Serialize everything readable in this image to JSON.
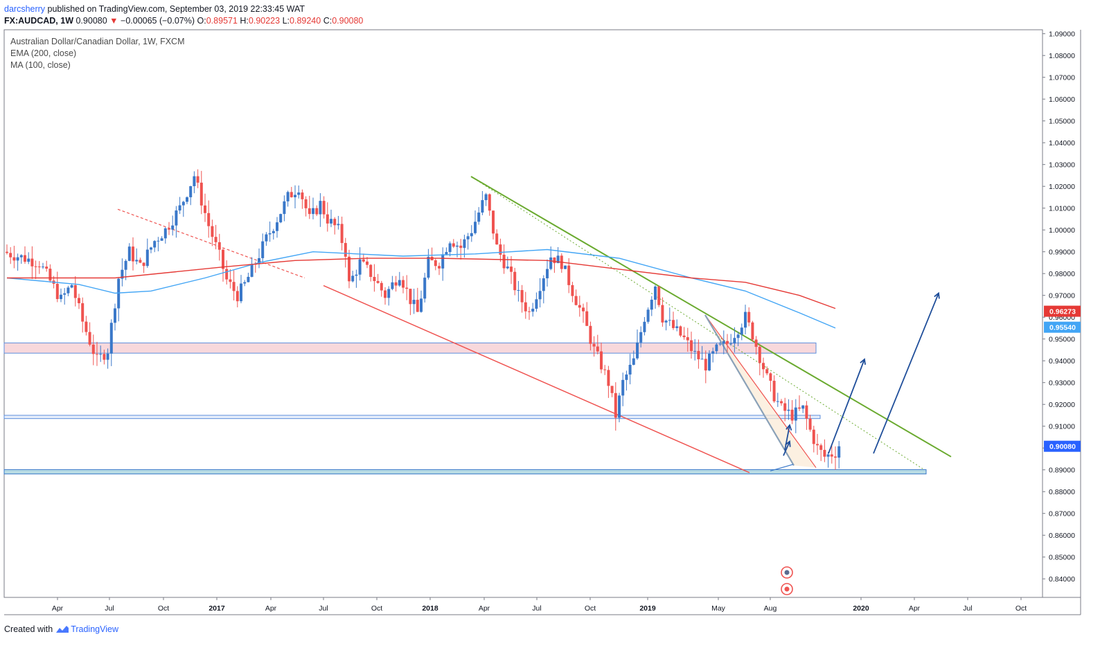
{
  "header": {
    "author": "darcsherry",
    "published": "published on TradingView.com, September 03, 2019 22:33:45 WAT",
    "symbol": "FX:AUDCAD, 1W",
    "last": "0.90080",
    "change_arrow": "▼",
    "change": "−0.00065 (−0.07%)",
    "o_label": "O:",
    "o": "0.89571",
    "h_label": "H:",
    "h": "0.90223",
    "l_label": "L:",
    "l": "0.89240",
    "c_label": "C:",
    "c": "0.90080"
  },
  "legend": {
    "title": "Australian Dollar/Canadian Dollar, 1W, FXCM",
    "ema": "EMA (200, close)",
    "ma": "MA (100, close)"
  },
  "footer": {
    "created": "Created with",
    "brand": "TradingView"
  },
  "colors": {
    "up": "#3a78c9",
    "down": "#ef5350",
    "ema": "#e53935",
    "ma": "#42a5f5",
    "trend_green": "#6aaa2f"
  },
  "chart_data": {
    "type": "candlestick",
    "symbol": "FX:AUDCAD",
    "interval": "1W",
    "y_axis_ticks": [
      "1.09000",
      "1.08000",
      "1.07000",
      "1.06000",
      "1.05000",
      "1.04000",
      "1.03000",
      "1.02000",
      "1.01000",
      "1.00000",
      "0.99000",
      "0.98000",
      "0.97000",
      "0.96000",
      "0.95000",
      "0.94000",
      "0.93000",
      "0.92000",
      "0.91000",
      "0.90000",
      "0.89000",
      "0.88000",
      "0.87000",
      "0.86000",
      "0.85000",
      "0.84000"
    ],
    "y_range": [
      0.8315,
      1.0918
    ],
    "x_axis_labels": [
      "Apr",
      "Jul",
      "Oct",
      "2017",
      "Apr",
      "Jul",
      "Oct",
      "2018",
      "Apr",
      "Jul",
      "Oct",
      "2019",
      "May",
      "Aug",
      "2020",
      "Apr",
      "Jul",
      "Oct"
    ],
    "x_year_labels": [
      "2017",
      "2018",
      "2019",
      "2020"
    ],
    "price_labels": [
      {
        "text": "0.96273",
        "value": 0.96273,
        "color": "#e53935"
      },
      {
        "text": "0.95540",
        "value": 0.9554,
        "color": "#42a5f5"
      },
      {
        "text": "0.90080",
        "value": 0.9008,
        "color": "#2962ff"
      }
    ],
    "series": [
      {
        "name": "EMA (200, close)",
        "color": "#e53935"
      },
      {
        "name": "MA (100, close)",
        "color": "#42a5f5"
      }
    ],
    "grid": false,
    "legend_position": "top-left",
    "anchors": [
      [
        0,
        0.99
      ],
      [
        10,
        0.985
      ],
      [
        16,
        0.968
      ],
      [
        19,
        0.975
      ],
      [
        22,
        0.958
      ],
      [
        26,
        0.94
      ],
      [
        29,
        0.945
      ],
      [
        32,
        0.978
      ],
      [
        35,
        0.99
      ],
      [
        38,
        0.983
      ],
      [
        42,
        0.995
      ],
      [
        45,
        1.0
      ],
      [
        49,
        1.01
      ],
      [
        53,
        1.025
      ],
      [
        57,
        1.002
      ],
      [
        60,
        0.988
      ],
      [
        62,
        0.977
      ],
      [
        65,
        0.97
      ],
      [
        67,
        0.975
      ],
      [
        70,
        0.985
      ],
      [
        73,
        0.996
      ],
      [
        76,
        1.005
      ],
      [
        79,
        1.015
      ],
      [
        82,
        1.02
      ],
      [
        85,
        1.005
      ],
      [
        88,
        1.012
      ],
      [
        90,
        1.005
      ],
      [
        93,
        1.0
      ],
      [
        95,
        0.99
      ],
      [
        96,
        0.975
      ],
      [
        99,
        0.985
      ],
      [
        102,
        0.98
      ],
      [
        106,
        0.97
      ],
      [
        110,
        0.98
      ],
      [
        113,
        0.968
      ],
      [
        115,
        0.962
      ],
      [
        118,
        0.985
      ],
      [
        121,
        0.985
      ],
      [
        124,
        0.996
      ],
      [
        127,
        0.992
      ],
      [
        130,
        1.0
      ],
      [
        133,
        1.012
      ],
      [
        134,
        1.015
      ],
      [
        137,
        0.992
      ],
      [
        140,
        0.982
      ],
      [
        143,
        0.97
      ],
      [
        146,
        0.962
      ],
      [
        149,
        0.975
      ],
      [
        152,
        0.988
      ],
      [
        155,
        0.985
      ],
      [
        158,
        0.972
      ],
      [
        161,
        0.96
      ],
      [
        164,
        0.945
      ],
      [
        166,
        0.938
      ],
      [
        168,
        0.93
      ],
      [
        170,
        0.915
      ],
      [
        172,
        0.93
      ],
      [
        175,
        0.94
      ],
      [
        178,
        0.96
      ],
      [
        181,
        0.975
      ],
      [
        183,
        0.96
      ],
      [
        186,
        0.955
      ],
      [
        189,
        0.95
      ],
      [
        192,
        0.943
      ],
      [
        195,
        0.938
      ],
      [
        198,
        0.945
      ],
      [
        201,
        0.948
      ],
      [
        204,
        0.955
      ],
      [
        206,
        0.96
      ],
      [
        208,
        0.952
      ],
      [
        210,
        0.942
      ],
      [
        212,
        0.932
      ],
      [
        214,
        0.924
      ],
      [
        216,
        0.918
      ],
      [
        219,
        0.915
      ],
      [
        222,
        0.918
      ],
      [
        224,
        0.908
      ],
      [
        226,
        0.9
      ],
      [
        228,
        0.896
      ],
      [
        231,
        0.898
      ]
    ],
    "ema_200": [
      [
        0,
        0.978
      ],
      [
        30,
        0.978
      ],
      [
        60,
        0.983
      ],
      [
        80,
        0.986
      ],
      [
        100,
        0.987
      ],
      [
        120,
        0.987
      ],
      [
        150,
        0.986
      ],
      [
        170,
        0.982
      ],
      [
        190,
        0.978
      ],
      [
        205,
        0.976
      ],
      [
        220,
        0.97
      ],
      [
        230,
        0.964
      ]
    ],
    "ma_100": [
      [
        0,
        0.978
      ],
      [
        20,
        0.975
      ],
      [
        30,
        0.971
      ],
      [
        40,
        0.972
      ],
      [
        55,
        0.978
      ],
      [
        70,
        0.985
      ],
      [
        85,
        0.99
      ],
      [
        110,
        0.988
      ],
      [
        130,
        0.989
      ],
      [
        150,
        0.991
      ],
      [
        170,
        0.987
      ],
      [
        190,
        0.978
      ],
      [
        205,
        0.972
      ],
      [
        220,
        0.962
      ],
      [
        230,
        0.955
      ]
    ],
    "annotations": {
      "zones": [
        {
          "from": 0.9435,
          "to": 0.9482,
          "fill": "#f8d8dc",
          "stroke": "#5b8ddb"
        },
        {
          "from": 0.9135,
          "to": 0.915,
          "fill": "#e6eefb",
          "stroke": "#5b8ddb"
        },
        {
          "from": 0.8881,
          "to": 0.8901,
          "fill": "#b7dbe4",
          "stroke": "#3a78c9"
        }
      ]
    }
  }
}
